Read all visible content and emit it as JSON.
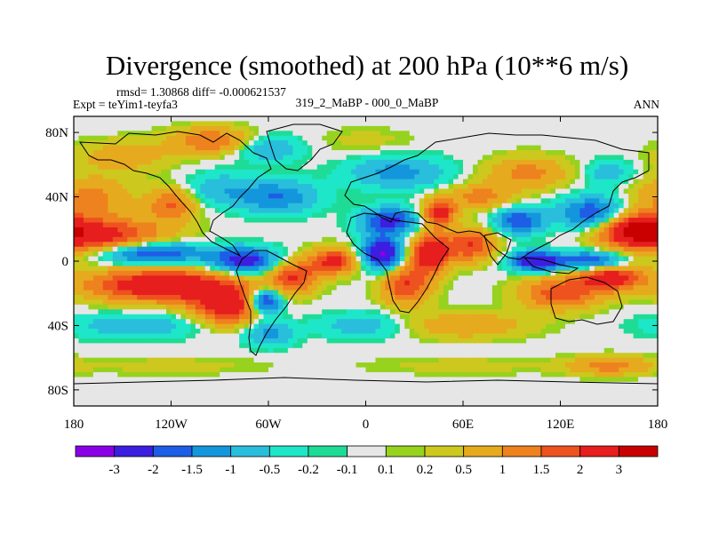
{
  "chart_data": {
    "type": "heatmap",
    "title": "Divergence (smoothed) at 200 hPa (10**6 m/s)",
    "stats_text": "rmsd= 1.30868 diff= -0.000621537",
    "left_label": "Expt = teYim1-teyfa3",
    "center_label": "319_2_MaBP - 000_0_MaBP",
    "right_label": "ANN",
    "xlim": [
      -180,
      180
    ],
    "ylim": [
      -90,
      90
    ],
    "x_ticks": [
      {
        "value": -180,
        "label": "180"
      },
      {
        "value": -120,
        "label": "120W"
      },
      {
        "value": -60,
        "label": "60W"
      },
      {
        "value": 0,
        "label": "0"
      },
      {
        "value": 60,
        "label": "60E"
      },
      {
        "value": 120,
        "label": "120E"
      },
      {
        "value": 180,
        "label": "180"
      }
    ],
    "y_ticks": [
      {
        "value": 80,
        "label": "80N"
      },
      {
        "value": 40,
        "label": "40N"
      },
      {
        "value": 0,
        "label": "0"
      },
      {
        "value": -40,
        "label": "40S"
      },
      {
        "value": -80,
        "label": "80S"
      }
    ],
    "levels": [
      {
        "value": -3,
        "label": "-3"
      },
      {
        "value": -2,
        "label": "-2"
      },
      {
        "value": -1.5,
        "label": "-1.5"
      },
      {
        "value": -1,
        "label": "-1"
      },
      {
        "value": -0.5,
        "label": "-0.5"
      },
      {
        "value": -0.2,
        "label": "-0.2"
      },
      {
        "value": -0.1,
        "label": "-0.1"
      },
      {
        "value": 0.1,
        "label": "0.1"
      },
      {
        "value": 0.2,
        "label": "0.2"
      },
      {
        "value": 0.5,
        "label": "0.5"
      },
      {
        "value": 1,
        "label": "1"
      },
      {
        "value": 1.5,
        "label": "1.5"
      },
      {
        "value": 2,
        "label": "2"
      },
      {
        "value": 3,
        "label": "3"
      }
    ],
    "colors": [
      "#8a00e6",
      "#3c1ee0",
      "#1e5ee6",
      "#1496dc",
      "#28bedc",
      "#1ee6c8",
      "#1edc96",
      "#e6e6e6",
      "#96d21e",
      "#cdc81e",
      "#e6aa1e",
      "#ee821e",
      "#ee521e",
      "#e61e1e",
      "#c80000"
    ],
    "features": [
      {
        "lon": -165,
        "lat": 15,
        "rlon": 40,
        "rlat": 12,
        "value": 2.5
      },
      {
        "lon": -135,
        "lat": 5,
        "rlon": 35,
        "rlat": 7,
        "value": -2.5
      },
      {
        "lon": -125,
        "lat": -15,
        "rlon": 45,
        "rlat": 10,
        "value": 3.0
      },
      {
        "lon": -85,
        "lat": -28,
        "rlon": 22,
        "rlat": 12,
        "value": 2.5
      },
      {
        "lon": -140,
        "lat": -40,
        "rlon": 45,
        "rlat": 8,
        "value": -0.8
      },
      {
        "lon": -170,
        "lat": 40,
        "rlon": 25,
        "rlat": 12,
        "value": 1.2
      },
      {
        "lon": -120,
        "lat": 35,
        "rlon": 15,
        "rlat": 10,
        "value": 1.5
      },
      {
        "lon": -90,
        "lat": 45,
        "rlon": 20,
        "rlat": 10,
        "value": -0.8
      },
      {
        "lon": -150,
        "lat": 65,
        "rlon": 30,
        "rlat": 10,
        "value": 0.8
      },
      {
        "lon": -95,
        "lat": 75,
        "rlon": 25,
        "rlat": 8,
        "value": 1.5
      },
      {
        "lon": -60,
        "lat": 70,
        "rlon": 20,
        "rlat": 8,
        "value": -1.0
      },
      {
        "lon": -55,
        "lat": 40,
        "rlon": 25,
        "rlat": 10,
        "value": -1.5
      },
      {
        "lon": -75,
        "lat": 0,
        "rlon": 20,
        "rlat": 8,
        "value": -2.5
      },
      {
        "lon": -62,
        "lat": -25,
        "rlon": 10,
        "rlat": 8,
        "value": -2.8
      },
      {
        "lon": -45,
        "lat": -10,
        "rlon": 15,
        "rlat": 10,
        "value": 2.0
      },
      {
        "lon": -20,
        "lat": 0,
        "rlon": 15,
        "rlat": 8,
        "value": 2.2
      },
      {
        "lon": 10,
        "lat": 5,
        "rlon": 12,
        "rlat": 10,
        "value": -3.2
      },
      {
        "lon": 25,
        "lat": -15,
        "rlon": 15,
        "rlat": 12,
        "value": 2.0
      },
      {
        "lon": 40,
        "lat": 5,
        "rlon": 12,
        "rlat": 12,
        "value": 2.8
      },
      {
        "lon": 45,
        "lat": 30,
        "rlon": 10,
        "rlat": 8,
        "value": 2.5
      },
      {
        "lon": 20,
        "lat": 55,
        "rlon": 30,
        "rlat": 10,
        "value": -1.2
      },
      {
        "lon": 15,
        "lat": 25,
        "rlon": 18,
        "rlat": 8,
        "value": -2.2
      },
      {
        "lon": 70,
        "lat": 40,
        "rlon": 20,
        "rlat": 8,
        "value": 1.2
      },
      {
        "lon": 65,
        "lat": 10,
        "rlon": 15,
        "rlat": 10,
        "value": 2.0
      },
      {
        "lon": 95,
        "lat": 25,
        "rlon": 15,
        "rlat": 8,
        "value": -2.0
      },
      {
        "lon": 105,
        "lat": 0,
        "rlon": 15,
        "rlat": 6,
        "value": -3.0
      },
      {
        "lon": 140,
        "lat": 0,
        "rlon": 20,
        "rlat": 6,
        "value": -2.2
      },
      {
        "lon": 140,
        "lat": 30,
        "rlon": 20,
        "rlat": 10,
        "value": -2.0
      },
      {
        "lon": 165,
        "lat": 20,
        "rlon": 20,
        "rlat": 10,
        "value": 2.5
      },
      {
        "lon": 120,
        "lat": -20,
        "rlon": 25,
        "rlat": 10,
        "value": 1.8
      },
      {
        "lon": 150,
        "lat": -10,
        "rlon": 20,
        "rlat": 8,
        "value": 2.5
      },
      {
        "lon": 100,
        "lat": 55,
        "rlon": 25,
        "rlat": 10,
        "value": 1.2
      },
      {
        "lon": 150,
        "lat": 55,
        "rlon": 15,
        "rlat": 8,
        "value": -0.8
      },
      {
        "lon": 60,
        "lat": -40,
        "rlon": 40,
        "rlat": 8,
        "value": 1.0
      },
      {
        "lon": 0,
        "lat": -40,
        "rlon": 30,
        "rlat": 8,
        "value": -0.8
      },
      {
        "lon": -60,
        "lat": -45,
        "rlon": 15,
        "rlat": 8,
        "value": -1.2
      },
      {
        "lon": -120,
        "lat": -65,
        "rlon": 60,
        "rlat": 6,
        "value": 0.3
      },
      {
        "lon": 60,
        "lat": -65,
        "rlon": 60,
        "rlat": 6,
        "value": 0.3
      },
      {
        "lon": 150,
        "lat": -65,
        "rlon": 25,
        "rlat": 6,
        "value": 1.2
      },
      {
        "lon": 0,
        "lat": 75,
        "rlon": 30,
        "rlat": 8,
        "value": 0.3
      }
    ]
  }
}
